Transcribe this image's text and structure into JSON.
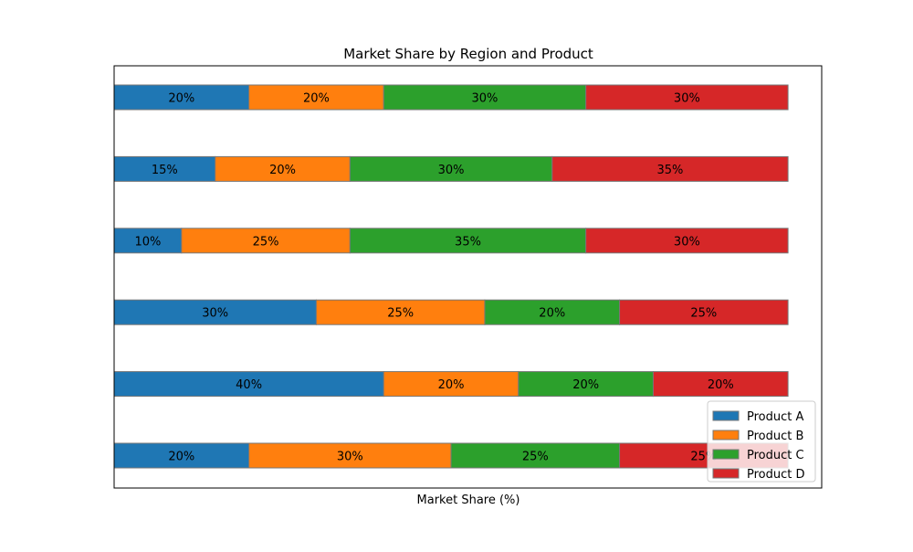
{
  "chart_data": {
    "type": "bar",
    "orientation": "horizontal",
    "stacked": true,
    "title": "Market Share by Region and Product",
    "xlabel": "Market Share (%)",
    "ylabel": "",
    "xlim": [
      0,
      105
    ],
    "grid": false,
    "legend_position": "bottom-right",
    "series": [
      {
        "name": "Product A",
        "color": "#1f77b4",
        "values": [
          20,
          15,
          10,
          30,
          40,
          20
        ]
      },
      {
        "name": "Product B",
        "color": "#ff7f0e",
        "values": [
          20,
          20,
          25,
          25,
          20,
          30
        ]
      },
      {
        "name": "Product C",
        "color": "#2ca02c",
        "values": [
          30,
          30,
          35,
          20,
          20,
          25
        ]
      },
      {
        "name": "Product D",
        "color": "#d62728",
        "values": [
          30,
          35,
          30,
          25,
          20,
          25
        ]
      }
    ],
    "label_suffix": "%"
  }
}
